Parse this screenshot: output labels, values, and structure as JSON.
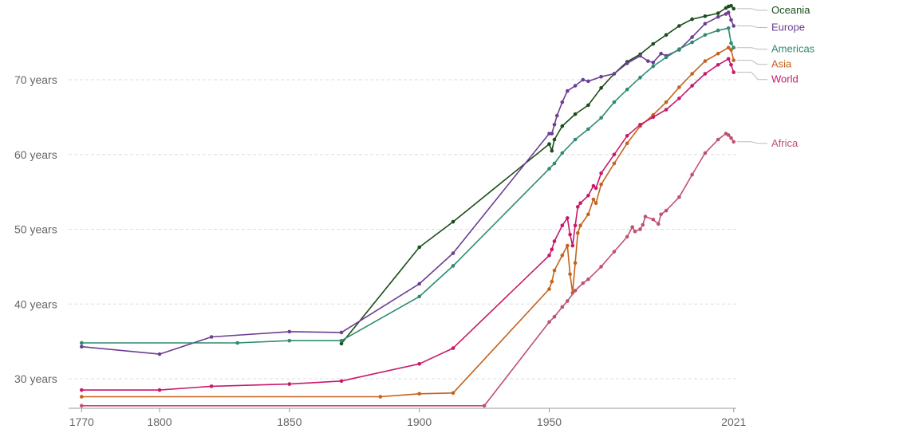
{
  "chart_data": {
    "type": "line",
    "title": "",
    "xlabel": "",
    "ylabel": "",
    "xlim": [
      1765,
      2022
    ],
    "ylim": [
      26.4,
      80
    ],
    "x_ticks": [
      {
        "value": 1770,
        "label": "1770"
      },
      {
        "value": 1800,
        "label": "1800"
      },
      {
        "value": 1850,
        "label": "1850"
      },
      {
        "value": 1900,
        "label": "1900"
      },
      {
        "value": 1950,
        "label": "1950"
      },
      {
        "value": 2021,
        "label": "2021"
      }
    ],
    "y_ticks": [
      {
        "value": 30,
        "label": "30 years"
      },
      {
        "value": 40,
        "label": "40 years"
      },
      {
        "value": 50,
        "label": "50 years"
      },
      {
        "value": 60,
        "label": "60 years"
      },
      {
        "value": 70,
        "label": "70 years"
      }
    ],
    "grid": true,
    "legend": "right",
    "series": [
      {
        "name": "Oceania",
        "color": "#1a4d1a",
        "points": [
          [
            1870,
            34.7
          ],
          [
            1900,
            47.6
          ],
          [
            1913,
            51.0
          ],
          [
            1950,
            61.4
          ],
          [
            1951,
            60.5
          ],
          [
            1952,
            62.0
          ],
          [
            1955,
            63.8
          ],
          [
            1960,
            65.4
          ],
          [
            1965,
            66.6
          ],
          [
            1970,
            68.9
          ],
          [
            1975,
            70.8
          ],
          [
            1980,
            72.4
          ],
          [
            1985,
            73.4
          ],
          [
            1990,
            74.8
          ],
          [
            1995,
            76.0
          ],
          [
            2000,
            77.2
          ],
          [
            2005,
            78.1
          ],
          [
            2010,
            78.5
          ],
          [
            2015,
            78.9
          ],
          [
            2018,
            79.6
          ],
          [
            2019,
            79.8
          ],
          [
            2020,
            79.9
          ],
          [
            2021,
            79.5
          ]
        ]
      },
      {
        "name": "Europe",
        "color": "#6d3e91",
        "points": [
          [
            1770,
            34.3
          ],
          [
            1800,
            33.3
          ],
          [
            1820,
            35.6
          ],
          [
            1850,
            36.3
          ],
          [
            1870,
            36.2
          ],
          [
            1900,
            42.7
          ],
          [
            1913,
            46.8
          ],
          [
            1950,
            62.8
          ],
          [
            1951,
            62.8
          ],
          [
            1952,
            64.0
          ],
          [
            1953,
            65.2
          ],
          [
            1955,
            67.0
          ],
          [
            1957,
            68.5
          ],
          [
            1960,
            69.2
          ],
          [
            1963,
            70.0
          ],
          [
            1965,
            69.8
          ],
          [
            1970,
            70.4
          ],
          [
            1975,
            70.8
          ],
          [
            1980,
            72.2
          ],
          [
            1985,
            73.2
          ],
          [
            1988,
            72.5
          ],
          [
            1990,
            72.3
          ],
          [
            1993,
            73.5
          ],
          [
            1995,
            73.2
          ],
          [
            2000,
            74.0
          ],
          [
            2005,
            75.7
          ],
          [
            2010,
            77.5
          ],
          [
            2015,
            78.4
          ],
          [
            2018,
            78.8
          ],
          [
            2019,
            79.0
          ],
          [
            2020,
            78.0
          ],
          [
            2021,
            77.2
          ]
        ]
      },
      {
        "name": "Americas",
        "color": "#2e8b72",
        "points": [
          [
            1770,
            34.8
          ],
          [
            1830,
            34.8
          ],
          [
            1850,
            35.1
          ],
          [
            1870,
            35.1
          ],
          [
            1900,
            41.0
          ],
          [
            1913,
            45.1
          ],
          [
            1950,
            58.1
          ],
          [
            1952,
            58.8
          ],
          [
            1955,
            60.2
          ],
          [
            1960,
            62.0
          ],
          [
            1965,
            63.4
          ],
          [
            1970,
            64.9
          ],
          [
            1975,
            67.0
          ],
          [
            1980,
            68.7
          ],
          [
            1985,
            70.3
          ],
          [
            1990,
            71.8
          ],
          [
            1995,
            73.0
          ],
          [
            2000,
            74.1
          ],
          [
            2005,
            75.0
          ],
          [
            2010,
            76.0
          ],
          [
            2015,
            76.6
          ],
          [
            2019,
            76.9
          ],
          [
            2020,
            74.9
          ],
          [
            2021,
            74.3
          ]
        ]
      },
      {
        "name": "Asia",
        "color": "#c4621c",
        "points": [
          [
            1770,
            27.6
          ],
          [
            1885,
            27.6
          ],
          [
            1900,
            28.0
          ],
          [
            1913,
            28.1
          ],
          [
            1950,
            42.0
          ],
          [
            1951,
            43.0
          ],
          [
            1952,
            44.5
          ],
          [
            1955,
            46.5
          ],
          [
            1957,
            47.8
          ],
          [
            1958,
            44.0
          ],
          [
            1959,
            41.5
          ],
          [
            1960,
            45.5
          ],
          [
            1961,
            49.5
          ],
          [
            1962,
            50.5
          ],
          [
            1965,
            52.0
          ],
          [
            1967,
            54.0
          ],
          [
            1968,
            53.5
          ],
          [
            1970,
            56.0
          ],
          [
            1975,
            58.8
          ],
          [
            1980,
            61.5
          ],
          [
            1985,
            63.8
          ],
          [
            1990,
            65.3
          ],
          [
            1995,
            67.0
          ],
          [
            2000,
            69.0
          ],
          [
            2005,
            70.8
          ],
          [
            2010,
            72.5
          ],
          [
            2015,
            73.5
          ],
          [
            2019,
            74.3
          ],
          [
            2020,
            74.0
          ],
          [
            2021,
            72.6
          ]
        ]
      },
      {
        "name": "World",
        "color": "#c8186a",
        "points": [
          [
            1770,
            28.5
          ],
          [
            1800,
            28.5
          ],
          [
            1820,
            29.0
          ],
          [
            1850,
            29.3
          ],
          [
            1870,
            29.7
          ],
          [
            1900,
            32.0
          ],
          [
            1913,
            34.1
          ],
          [
            1950,
            46.5
          ],
          [
            1951,
            47.3
          ],
          [
            1952,
            48.4
          ],
          [
            1955,
            50.5
          ],
          [
            1957,
            51.5
          ],
          [
            1958,
            49.3
          ],
          [
            1959,
            47.8
          ],
          [
            1960,
            50.5
          ],
          [
            1961,
            53.0
          ],
          [
            1962,
            53.5
          ],
          [
            1965,
            54.5
          ],
          [
            1967,
            55.8
          ],
          [
            1968,
            55.5
          ],
          [
            1970,
            57.5
          ],
          [
            1975,
            60.0
          ],
          [
            1980,
            62.5
          ],
          [
            1985,
            64.0
          ],
          [
            1990,
            65.0
          ],
          [
            1995,
            66.0
          ],
          [
            2000,
            67.5
          ],
          [
            2005,
            69.2
          ],
          [
            2010,
            70.8
          ],
          [
            2015,
            72.0
          ],
          [
            2019,
            72.8
          ],
          [
            2020,
            72.0
          ],
          [
            2021,
            71.0
          ]
        ]
      },
      {
        "name": "Africa",
        "color": "#c05070",
        "points": [
          [
            1770,
            26.4
          ],
          [
            1925,
            26.4
          ],
          [
            1950,
            37.6
          ],
          [
            1952,
            38.3
          ],
          [
            1955,
            39.6
          ],
          [
            1957,
            40.4
          ],
          [
            1960,
            41.8
          ],
          [
            1963,
            42.8
          ],
          [
            1965,
            43.3
          ],
          [
            1970,
            45.0
          ],
          [
            1975,
            47.0
          ],
          [
            1980,
            49.0
          ],
          [
            1982,
            50.3
          ],
          [
            1983,
            49.7
          ],
          [
            1985,
            50.0
          ],
          [
            1986,
            50.6
          ],
          [
            1987,
            51.7
          ],
          [
            1990,
            51.3
          ],
          [
            1992,
            50.7
          ],
          [
            1993,
            52.0
          ],
          [
            1995,
            52.5
          ],
          [
            2000,
            54.3
          ],
          [
            2005,
            57.3
          ],
          [
            2010,
            60.2
          ],
          [
            2015,
            62.0
          ],
          [
            2018,
            62.8
          ],
          [
            2019,
            62.6
          ],
          [
            2020,
            62.2
          ],
          [
            2021,
            61.7
          ]
        ]
      }
    ]
  }
}
